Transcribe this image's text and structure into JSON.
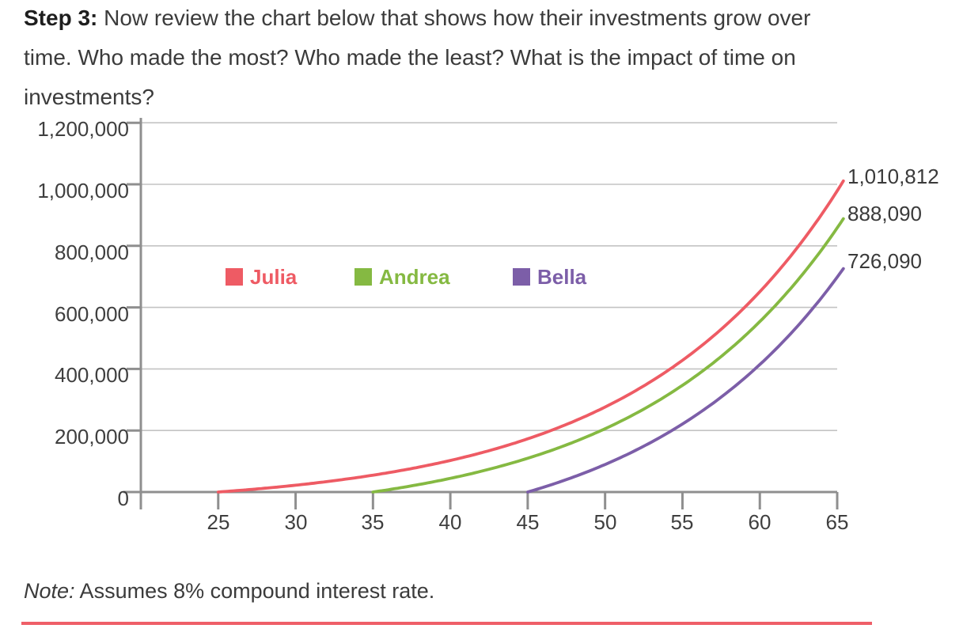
{
  "heading": {
    "prefix": "Step 3:",
    "line1_rest": " Now review the chart below that shows how their investments grow over",
    "line2": "time. Who made the most? Who made the least? What is the impact of time on",
    "line3": "investments?"
  },
  "note": {
    "prefix": "Note:",
    "rest": " Assumes 8% compound interest rate."
  },
  "colors": {
    "divider": "#EF5F68",
    "axis": "#8F8F8F",
    "grid": "#C3C3C3",
    "text": "#3B3B3B"
  },
  "chart_data": {
    "type": "line",
    "title": "",
    "xlabel": "",
    "ylabel": "",
    "x_unit": "age",
    "xlim": [
      20,
      66
    ],
    "ylim": [
      0,
      1200000
    ],
    "grid": "horizontal",
    "legend_position": "inside-upper-left",
    "interest_rate_note": "8% compound interest",
    "xlabel_ticks": [
      "25",
      "30",
      "35",
      "40",
      "45",
      "50",
      "55",
      "60",
      "65"
    ],
    "x_ticks": [
      25,
      30,
      35,
      40,
      45,
      50,
      55,
      60,
      65
    ],
    "ylabel_ticks": [
      "0",
      "200,000",
      "400,000",
      "600,000",
      "800,000",
      "1,000,000",
      "1,200,000"
    ],
    "y_ticks": [
      0,
      200000,
      400000,
      600000,
      800000,
      1000000,
      1200000
    ],
    "series": [
      {
        "name": "Julia",
        "color": "#EE5B64",
        "start_age": 25,
        "ages": [
          25,
          30,
          35,
          40,
          45,
          50,
          55,
          60,
          65
        ],
        "values": [
          0,
          22894,
          56533,
          105957,
          178578,
          285283,
          442065,
          672455,
          1010812
        ],
        "final_value": 1010812,
        "end_label": "1,010,812"
      },
      {
        "name": "Andrea",
        "color": "#85B942",
        "start_age": 35,
        "ages": [
          35,
          40,
          45,
          50,
          55,
          60,
          65
        ],
        "values": [
          0,
          45993,
          113567,
          212866,
          358763,
          573149,
          888090
        ],
        "final_value": 888090,
        "end_label": "888,090"
      },
      {
        "name": "Bella",
        "color": "#7C5EA8",
        "start_age": 45,
        "ages": [
          45,
          50,
          55,
          60,
          65
        ],
        "values": [
          0,
          93085,
          229852,
          430803,
          726090
        ],
        "final_value": 726090,
        "end_label": "726,090"
      }
    ]
  }
}
